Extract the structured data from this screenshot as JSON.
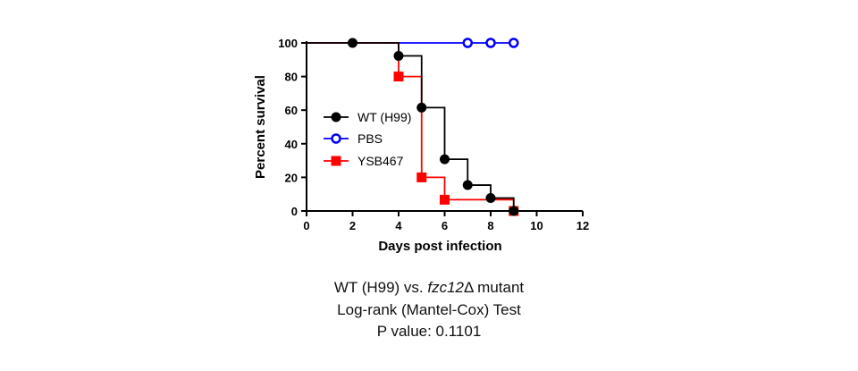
{
  "chart_data": {
    "type": "line",
    "subtype": "kaplan-meier-step",
    "xlabel": "Days post infection",
    "ylabel": "Percent survival",
    "xlim": [
      0,
      12
    ],
    "ylim": [
      0,
      100
    ],
    "xticks": [
      "0",
      "2",
      "4",
      "6",
      "8",
      "10",
      "12"
    ],
    "yticks": [
      "0",
      "20",
      "40",
      "60",
      "80",
      "100"
    ],
    "grid": false,
    "legend_position": "left-center",
    "series": [
      {
        "name": "WT (H99)",
        "color": "#000000",
        "marker": "filled-circle",
        "x": [
          0,
          2,
          4,
          5,
          6,
          7,
          8,
          9
        ],
        "y": [
          100,
          100,
          92.3,
          61.5,
          30.8,
          15.4,
          7.7,
          0
        ]
      },
      {
        "name": "PBS",
        "color": "#0000ff",
        "marker": "open-circle",
        "x": [
          0,
          7,
          8,
          9
        ],
        "y": [
          100,
          100,
          100,
          100
        ]
      },
      {
        "name": "YSB467",
        "color": "#ff0000",
        "marker": "filled-square",
        "x": [
          0,
          4,
          5,
          6,
          9
        ],
        "y": [
          100,
          80,
          20,
          6.7,
          0
        ]
      }
    ]
  },
  "caption": {
    "line1_prefix": "WT (H99) vs. ",
    "line1_italic": "fzc12",
    "line1_suffix": "Δ mutant",
    "line2": "Log-rank (Mantel-Cox) Test",
    "line3": "P value: 0.1101"
  }
}
